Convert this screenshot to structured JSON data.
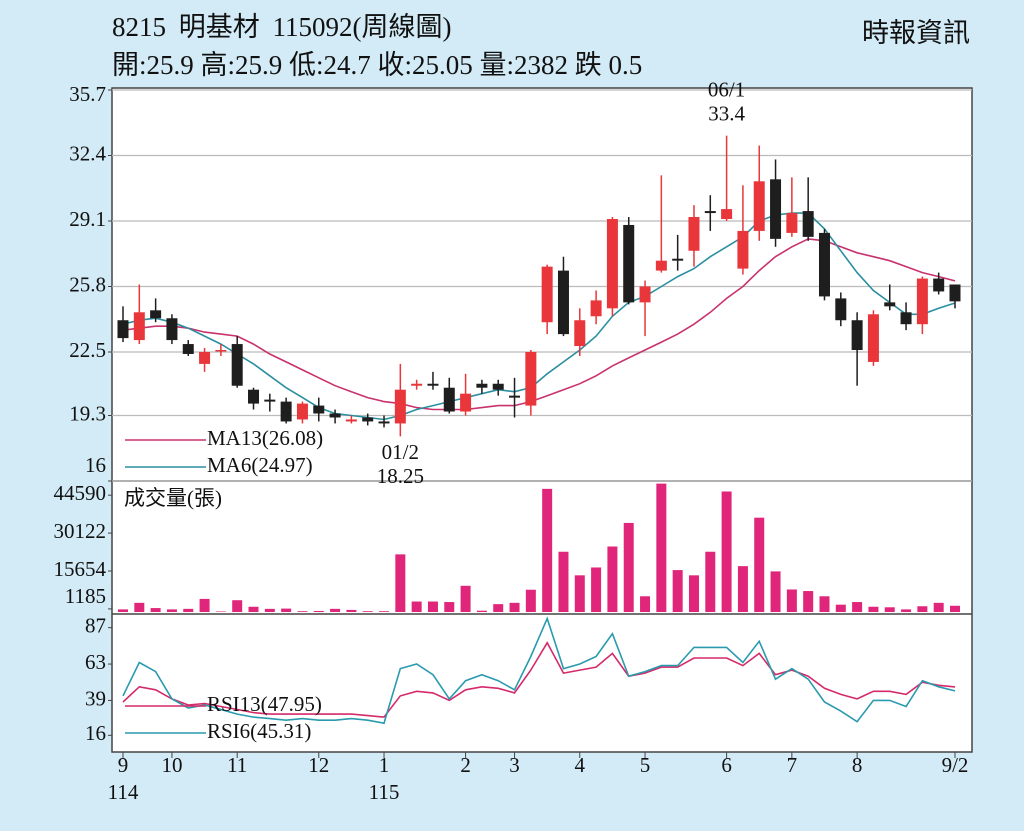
{
  "header": {
    "title": "8215 明基材 115092(周線圖)",
    "source": "時報資訊",
    "summary": "開:25.9 高:25.9 低:24.7 收:25.05 量:2382 跌 0.5"
  },
  "chart_data": [
    {
      "type": "candlestick",
      "open": [
        24.1,
        23.1,
        24.6,
        24.2,
        22.9,
        21.9,
        22.6,
        22.9,
        20.6,
        20.1,
        20.0,
        19.1,
        19.8,
        19.4,
        19.0,
        19.2,
        19.0,
        18.9,
        20.8,
        20.9,
        20.7,
        19.5,
        20.9,
        20.9,
        20.3,
        19.8,
        24.0,
        26.6,
        22.8,
        24.3,
        24.7,
        28.9,
        25.0,
        26.6,
        27.2,
        27.6,
        29.6,
        29.2,
        26.7,
        28.6,
        31.2,
        28.5,
        29.6,
        28.5,
        25.2,
        24.1,
        22.0,
        25.0,
        24.5,
        23.9,
        26.2,
        25.9
      ],
      "high": [
        24.8,
        25.9,
        25.2,
        24.4,
        23.1,
        22.7,
        22.9,
        23.3,
        20.7,
        20.4,
        20.2,
        20.0,
        20.2,
        19.6,
        19.3,
        19.4,
        19.3,
        21.9,
        21.1,
        21.5,
        21.2,
        21.4,
        21.1,
        21.1,
        21.2,
        22.6,
        26.9,
        27.3,
        24.7,
        25.6,
        29.3,
        29.3,
        26.1,
        31.4,
        28.4,
        29.9,
        30.4,
        33.4,
        30.9,
        32.9,
        32.2,
        31.3,
        31.3,
        28.7,
        25.5,
        24.5,
        24.6,
        25.9,
        25.0,
        26.3,
        26.5,
        25.9
      ],
      "low": [
        23.0,
        22.9,
        24.0,
        22.9,
        22.3,
        21.5,
        22.3,
        20.7,
        19.6,
        19.5,
        18.9,
        18.9,
        19.0,
        18.9,
        18.9,
        18.8,
        18.7,
        18.25,
        20.6,
        20.6,
        19.4,
        19.3,
        20.4,
        20.3,
        19.2,
        19.3,
        23.4,
        23.3,
        22.3,
        23.9,
        24.3,
        24.9,
        23.3,
        26.5,
        26.6,
        26.8,
        28.6,
        29.1,
        26.4,
        28.1,
        27.8,
        28.3,
        28.1,
        25.1,
        23.8,
        20.8,
        21.8,
        24.6,
        23.6,
        23.4,
        25.4,
        24.7
      ],
      "close": [
        23.2,
        24.5,
        24.2,
        23.1,
        22.4,
        22.5,
        22.6,
        20.8,
        19.9,
        20.0,
        19.0,
        19.9,
        19.4,
        19.2,
        19.1,
        19.0,
        18.9,
        20.6,
        20.9,
        20.8,
        19.5,
        20.4,
        20.7,
        20.6,
        20.2,
        22.5,
        26.8,
        23.4,
        24.1,
        25.1,
        29.2,
        25.0,
        25.8,
        27.1,
        27.1,
        29.3,
        29.5,
        29.7,
        28.6,
        31.1,
        28.2,
        29.5,
        28.3,
        25.3,
        24.1,
        22.6,
        24.4,
        24.8,
        23.9,
        26.2,
        25.55,
        25.05
      ],
      "up_color": "#e8363a",
      "down_color": "#1e1e1e",
      "series": [
        {
          "name": "MA13(26.08)",
          "color": "#c8326e",
          "values": [
            23.6,
            23.7,
            23.8,
            23.8,
            23.7,
            23.5,
            23.4,
            23.3,
            22.9,
            22.4,
            22.0,
            21.6,
            21.2,
            20.8,
            20.5,
            20.2,
            20.0,
            19.9,
            19.7,
            19.6,
            19.6,
            19.6,
            19.7,
            19.8,
            19.8,
            20.0,
            20.3,
            20.6,
            20.9,
            21.3,
            21.8,
            22.2,
            22.6,
            23.0,
            23.4,
            23.9,
            24.5,
            25.2,
            25.8,
            26.6,
            27.3,
            27.8,
            28.2,
            28.1,
            27.8,
            27.5,
            27.3,
            27.1,
            26.8,
            26.5,
            26.3,
            26.08
          ]
        },
        {
          "name": "MA6(24.97)",
          "color": "#2a8fa0",
          "values": [
            23.9,
            24.1,
            24.2,
            24.0,
            23.7,
            23.3,
            22.9,
            22.4,
            21.9,
            21.3,
            20.7,
            20.2,
            19.7,
            19.4,
            19.3,
            19.2,
            19.1,
            19.3,
            19.6,
            19.8,
            20.0,
            20.2,
            20.4,
            20.6,
            20.5,
            20.7,
            21.4,
            22.0,
            22.6,
            23.3,
            24.3,
            25.0,
            25.3,
            25.8,
            26.3,
            26.7,
            27.3,
            27.8,
            28.3,
            29.1,
            29.4,
            29.5,
            29.5,
            28.7,
            27.6,
            26.5,
            25.6,
            25.0,
            24.4,
            24.4,
            24.7,
            24.97
          ]
        }
      ],
      "annotations": [
        {
          "label": "06/1",
          "value": 33.4
        },
        {
          "label": "01/2",
          "value": 18.25
        }
      ],
      "ylim": [
        16.0,
        35.7
      ],
      "yticks": [
        16.0,
        19.3,
        22.5,
        25.8,
        29.1,
        32.4,
        35.7
      ],
      "grid": true
    },
    {
      "type": "bar",
      "title": "成交量(張)",
      "color": "#e0267a",
      "values": [
        1000,
        3500,
        1500,
        1000,
        1200,
        5000,
        200,
        4500,
        2000,
        1200,
        1300,
        300,
        400,
        1200,
        800,
        300,
        300,
        22000,
        4000,
        4000,
        3800,
        10000,
        500,
        3000,
        3500,
        8500,
        47000,
        23000,
        14000,
        17000,
        25000,
        34000,
        6000,
        49000,
        16000,
        14000,
        23000,
        46000,
        17500,
        36000,
        15500,
        8600,
        8000,
        6000,
        2800,
        3800,
        2000,
        1800,
        1000,
        2200,
        3500,
        2382
      ],
      "ylim": [
        0,
        50000
      ],
      "yticks": [
        1185,
        15654,
        30122,
        44590
      ]
    },
    {
      "type": "line",
      "series": [
        {
          "name": "RSI13(47.95)",
          "color": "#d42a6a",
          "values": [
            38,
            48,
            46,
            40,
            36,
            37,
            35,
            33,
            31,
            30,
            30,
            30,
            30,
            30,
            30,
            29,
            28,
            42,
            45,
            44,
            39,
            46,
            48,
            47,
            44,
            59,
            77,
            57,
            59,
            61,
            70,
            55,
            57,
            61,
            61,
            67,
            67,
            67,
            62,
            70,
            56,
            59,
            55,
            47,
            43,
            40,
            45,
            45,
            43,
            51,
            49,
            47.95
          ]
        },
        {
          "name": "RSI6(45.31)",
          "color": "#2a9aae",
          "values": [
            42,
            64,
            58,
            40,
            34,
            36,
            33,
            30,
            28,
            27,
            26,
            27,
            26,
            26,
            27,
            26,
            24,
            60,
            63,
            56,
            40,
            52,
            56,
            52,
            46,
            68,
            93,
            60,
            63,
            68,
            83,
            55,
            58,
            62,
            62,
            74,
            74,
            74,
            64,
            78,
            53,
            60,
            53,
            38,
            32,
            25,
            39,
            39,
            35,
            52,
            48,
            45.31
          ]
        }
      ],
      "categories": [
        "9",
        null,
        null,
        "10",
        null,
        null,
        null,
        "11",
        null,
        null,
        null,
        null,
        "12",
        null,
        null,
        null,
        "1",
        null,
        null,
        null,
        null,
        "2",
        null,
        null,
        "3",
        null,
        null,
        null,
        "4",
        null,
        null,
        null,
        "5",
        null,
        null,
        null,
        null,
        "6",
        null,
        null,
        null,
        "7",
        null,
        null,
        null,
        "8",
        null,
        null,
        null,
        null,
        null,
        "9/2"
      ],
      "year_labels": [
        "114",
        null,
        null,
        null,
        null,
        null,
        null,
        null,
        null,
        null,
        null,
        null,
        null,
        null,
        null,
        null,
        "115",
        null,
        null,
        null,
        null,
        null,
        null,
        null,
        null,
        null,
        null,
        null,
        null,
        null,
        null,
        null,
        null,
        null,
        null,
        null,
        null,
        null,
        null,
        null,
        null,
        null,
        null,
        null,
        null,
        null,
        null,
        null,
        null,
        null,
        null,
        null
      ],
      "ylim": [
        5,
        96
      ],
      "yticks": [
        16,
        39,
        63,
        87
      ]
    }
  ]
}
